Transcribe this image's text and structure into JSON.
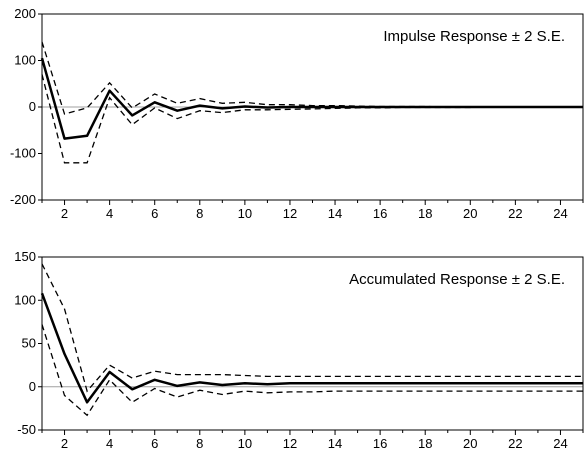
{
  "chart_data": [
    {
      "type": "line",
      "title": "Impulse Response ± 2 S.E.",
      "xlabel": "",
      "ylabel": "",
      "xlim": [
        1,
        25
      ],
      "ylim": [
        -200,
        200
      ],
      "x_ticks": [
        2,
        4,
        6,
        8,
        10,
        12,
        14,
        16,
        18,
        20,
        22,
        24
      ],
      "y_ticks": [
        -200,
        -100,
        0,
        100,
        200
      ],
      "grid": false,
      "zero_line": true,
      "x": [
        1,
        2,
        3,
        4,
        5,
        6,
        7,
        8,
        9,
        10,
        11,
        12,
        13,
        14,
        15,
        16,
        17,
        18,
        19,
        20,
        21,
        22,
        23,
        24,
        25
      ],
      "series": [
        {
          "role": "response",
          "values": [
            105,
            -68,
            -62,
            35,
            -18,
            10,
            -8,
            3,
            -3,
            1,
            -1,
            0,
            0,
            0,
            0,
            0,
            0,
            0,
            0,
            0,
            0,
            0,
            0,
            0,
            0
          ]
        },
        {
          "role": "upper",
          "values": [
            140,
            -15,
            -2,
            52,
            -2,
            28,
            8,
            18,
            8,
            10,
            5,
            5,
            3,
            3,
            2,
            1,
            1,
            1,
            0,
            0,
            0,
            0,
            0,
            0,
            0
          ]
        },
        {
          "role": "lower",
          "values": [
            70,
            -120,
            -120,
            20,
            -38,
            -2,
            -25,
            -8,
            -12,
            -6,
            -6,
            -5,
            -4,
            -3,
            -2,
            -2,
            -1,
            -1,
            -1,
            -1,
            0,
            0,
            0,
            0,
            0
          ]
        }
      ]
    },
    {
      "type": "line",
      "title": "Accumulated Response ± 2 S.E.",
      "xlabel": "",
      "ylabel": "",
      "xlim": [
        1,
        25
      ],
      "ylim": [
        -50,
        150
      ],
      "x_ticks": [
        2,
        4,
        6,
        8,
        10,
        12,
        14,
        16,
        18,
        20,
        22,
        24
      ],
      "y_ticks": [
        -50,
        0,
        50,
        100,
        150
      ],
      "grid": false,
      "zero_line": true,
      "x": [
        1,
        2,
        3,
        4,
        5,
        6,
        7,
        8,
        9,
        10,
        11,
        12,
        13,
        14,
        15,
        16,
        17,
        18,
        19,
        20,
        21,
        22,
        23,
        24,
        25
      ],
      "series": [
        {
          "role": "response",
          "values": [
            108,
            38,
            -18,
            17,
            -3,
            8,
            1,
            5,
            2,
            4,
            3,
            4,
            4,
            4,
            4,
            4,
            4,
            4,
            4,
            4,
            4,
            4,
            4,
            4,
            4
          ]
        },
        {
          "role": "upper",
          "values": [
            142,
            90,
            -5,
            25,
            10,
            18,
            14,
            14,
            14,
            13,
            12,
            12,
            12,
            12,
            12,
            12,
            12,
            12,
            12,
            12,
            12,
            12,
            12,
            12,
            12
          ]
        },
        {
          "role": "lower",
          "values": [
            72,
            -10,
            -33,
            8,
            -18,
            -2,
            -12,
            -4,
            -9,
            -5,
            -7,
            -6,
            -6,
            -5,
            -5,
            -5,
            -5,
            -5,
            -5,
            -5,
            -5,
            -5,
            -5,
            -5,
            -5
          ]
        }
      ]
    }
  ]
}
